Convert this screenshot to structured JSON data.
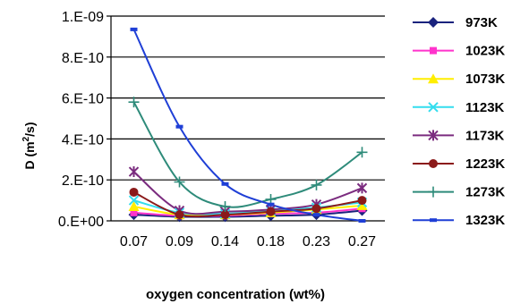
{
  "chart_data": {
    "type": "line",
    "xlabel": "oxygen concentration (wt%)",
    "ylabel": "D (m",
    "ylabel_sup": "2",
    "ylabel_tail": "/s)",
    "categories": [
      "0.07",
      "0.09",
      "0.14",
      "0.18",
      "0.23",
      "0.27"
    ],
    "ylim": [
      0,
      1e-09
    ],
    "yticks": [
      0,
      2e-10,
      4e-10,
      6e-10,
      8e-10,
      1e-09
    ],
    "ytick_labels": [
      "0.E+00",
      "2.E-10",
      "4.E-10",
      "6.E-10",
      "8.E-10",
      "1.E-09"
    ],
    "grid": "horizontal",
    "legend_position": "right",
    "series": [
      {
        "name": "973K",
        "color": "#1a237e",
        "marker": "diamond",
        "values": [
          3e-11,
          2e-11,
          2e-11,
          2.5e-11,
          3e-11,
          5e-11
        ]
      },
      {
        "name": "1023K",
        "color": "#ff33cc",
        "marker": "square",
        "values": [
          4e-11,
          2.5e-11,
          2.5e-11,
          3.5e-11,
          4e-11,
          6e-11
        ]
      },
      {
        "name": "1073K",
        "color": "#ffee00",
        "marker": "triangle",
        "values": [
          7e-11,
          3e-11,
          3e-11,
          4e-11,
          5.5e-11,
          7.5e-11
        ]
      },
      {
        "name": "1123K",
        "color": "#33ddee",
        "marker": "x",
        "values": [
          1e-10,
          4e-11,
          3.5e-11,
          5e-11,
          6.5e-11,
          9e-11
        ]
      },
      {
        "name": "1173K",
        "color": "#7b2c7f",
        "marker": "star",
        "values": [
          2.4e-10,
          5e-11,
          4.5e-11,
          5.5e-11,
          8e-11,
          1.6e-10
        ]
      },
      {
        "name": "1223K",
        "color": "#8b1a1a",
        "marker": "circle",
        "values": [
          1.4e-10,
          3e-11,
          3e-11,
          4.5e-11,
          6e-11,
          1e-10
        ]
      },
      {
        "name": "1273K",
        "color": "#2e8b7a",
        "marker": "plus",
        "values": [
          5.8e-10,
          1.9e-10,
          7e-11,
          1.05e-10,
          1.75e-10,
          3.35e-10
        ]
      },
      {
        "name": "1323K",
        "color": "#1f3fd6",
        "marker": "dash",
        "values": [
          9.35e-10,
          4.6e-10,
          1.8e-10,
          8e-11,
          3e-11,
          0
        ]
      }
    ]
  }
}
